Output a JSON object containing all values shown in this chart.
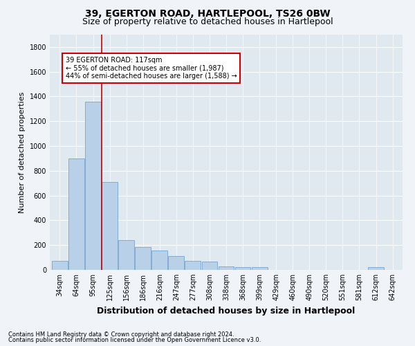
{
  "title": "39, EGERTON ROAD, HARTLEPOOL, TS26 0BW",
  "subtitle": "Size of property relative to detached houses in Hartlepool",
  "xlabel": "Distribution of detached houses by size in Hartlepool",
  "ylabel": "Number of detached properties",
  "categories": [
    "34sqm",
    "64sqm",
    "95sqm",
    "125sqm",
    "156sqm",
    "186sqm",
    "216sqm",
    "247sqm",
    "277sqm",
    "308sqm",
    "338sqm",
    "368sqm",
    "399sqm",
    "429sqm",
    "460sqm",
    "490sqm",
    "520sqm",
    "551sqm",
    "581sqm",
    "612sqm",
    "642sqm"
  ],
  "values": [
    75,
    900,
    1360,
    710,
    240,
    185,
    155,
    110,
    75,
    65,
    30,
    20,
    20,
    0,
    0,
    0,
    0,
    0,
    0,
    25,
    0
  ],
  "bar_color": "#b8d0e8",
  "bar_edge_color": "#6699cc",
  "vline_color": "#cc0000",
  "annotation_text": "39 EGERTON ROAD: 117sqm\n← 55% of detached houses are smaller (1,987)\n44% of semi-detached houses are larger (1,588) →",
  "annotation_box_color": "#ffffff",
  "annotation_box_edge_color": "#cc0000",
  "ylim": [
    0,
    1900
  ],
  "yticks": [
    0,
    200,
    400,
    600,
    800,
    1000,
    1200,
    1400,
    1600,
    1800
  ],
  "footnote1": "Contains HM Land Registry data © Crown copyright and database right 2024.",
  "footnote2": "Contains public sector information licensed under the Open Government Licence v3.0.",
  "bg_color": "#f0f4f8",
  "plot_bg_color": "#e0e8f0",
  "title_fontsize": 10,
  "subtitle_fontsize": 9,
  "ylabel_fontsize": 8,
  "xlabel_fontsize": 9,
  "tick_fontsize": 7,
  "annot_fontsize": 7,
  "footnote_fontsize": 6
}
